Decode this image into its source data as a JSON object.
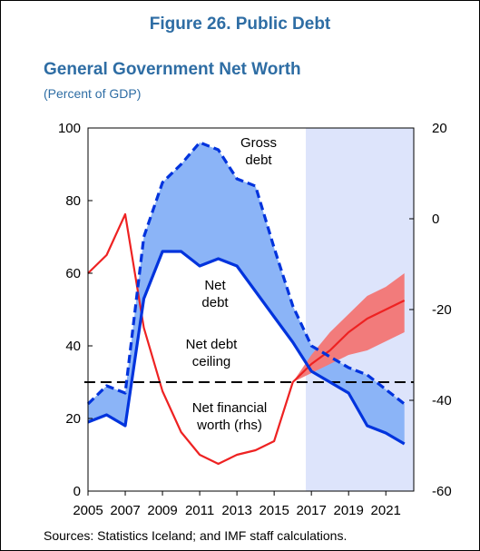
{
  "figure_title": "Figure 26. Public Debt",
  "chart_title": "General Government Net Worth",
  "chart_subtitle": "(Percent of GDP)",
  "sources": "Sources: Statistics Iceland; and IMF staff calculations.",
  "colors": {
    "title": "#2e6da4",
    "gross_net_fill": "#8bb4f7",
    "debt_line": "#0033dd",
    "net_worth_line": "#ee2222",
    "fan_fill": "#f27b7b",
    "projection_shade": "#dde4fb"
  },
  "chart_data": {
    "type": "line",
    "x_tick_labels": [
      "2005",
      "2007",
      "2009",
      "2011",
      "2013",
      "2015",
      "2017",
      "2019",
      "2021"
    ],
    "xlim": [
      2005,
      2022.5
    ],
    "projection_start": 2016.7,
    "y_left": {
      "ylim": [
        0,
        100
      ],
      "ticks": [
        0,
        20,
        40,
        60,
        80,
        100
      ]
    },
    "y_right": {
      "ylim": [
        -60,
        20
      ],
      "ticks": [
        -60,
        -40,
        -20,
        0,
        20
      ]
    },
    "annotations": {
      "gross_debt": [
        "Gross",
        "debt"
      ],
      "net_debt": [
        "Net",
        "debt"
      ],
      "ceiling": [
        "Net debt",
        "ceiling"
      ],
      "net_worth": [
        "Net financial",
        "worth (rhs)"
      ]
    },
    "series": [
      {
        "axis": "left",
        "style": "dashed",
        "x": [
          2005,
          2006,
          2007,
          2008,
          2009,
          2010,
          2011,
          2012,
          2013,
          2014,
          2015,
          2016,
          2017,
          2018,
          2019,
          2020,
          2021,
          2022
        ],
        "values": [
          24,
          29,
          27,
          70,
          85,
          90,
          96,
          94,
          86,
          84,
          67,
          51,
          40,
          37,
          34,
          32,
          28,
          24
        ]
      },
      {
        "axis": "left",
        "style": "solid",
        "x": [
          2005,
          2006,
          2007,
          2008,
          2009,
          2010,
          2011,
          2012,
          2013,
          2014,
          2015,
          2016,
          2017,
          2018,
          2019,
          2020,
          2021,
          2022
        ],
        "values": [
          19,
          21,
          18,
          53,
          66,
          66,
          62,
          64,
          62,
          55,
          48,
          41,
          33,
          30,
          27,
          18,
          16,
          13
        ]
      },
      {
        "axis": "left",
        "style": "dashed-black",
        "x": [
          2004.8,
          2022.5
        ],
        "values": [
          30,
          30
        ]
      },
      {
        "axis": "right",
        "style": "solid-red",
        "x": [
          2005,
          2006,
          2007,
          2008,
          2009,
          2010,
          2011,
          2012,
          2013,
          2014,
          2015,
          2016,
          2017,
          2018,
          2019,
          2020,
          2021,
          2022
        ],
        "values": [
          -12,
          -8,
          1,
          -24,
          -38,
          -47,
          -52,
          -54,
          -52,
          -51,
          -49,
          -36,
          -32,
          -29,
          -25,
          -22,
          -20,
          -18
        ]
      },
      {
        "axis": "right",
        "style": "fan",
        "x": [
          2016,
          2017,
          2018,
          2019,
          2020,
          2021,
          2022
        ],
        "upper": [
          -36,
          -30,
          -25,
          -21,
          -17,
          -15,
          -12
        ],
        "lower": [
          -36,
          -34,
          -32,
          -30,
          -29,
          -27,
          -25
        ]
      }
    ]
  }
}
